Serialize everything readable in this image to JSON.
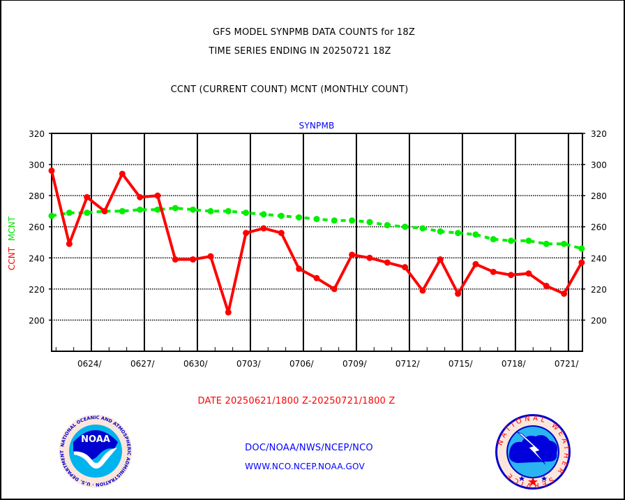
{
  "chart_data": {
    "type": "line",
    "title": "GFS MODEL SYNPMB DATA COUNTS for 18Z",
    "subtitle": "TIME SERIES ENDING IN 20250721 18Z",
    "legend_text": "CCNT (CURRENT COUNT) MCNT (MONTHLY COUNT)",
    "panel_label": "SYNPMB",
    "ylabel": {
      "ccnt": "CCNT",
      "mcnt": "MCNT"
    },
    "xlabel": "DATE 20250621/1800 Z-20250721/1800 Z",
    "ylim": [
      180,
      320
    ],
    "yticks": [
      200,
      220,
      240,
      260,
      280,
      300,
      320
    ],
    "xtick_labels": [
      "0624/",
      "0627/",
      "0630/",
      "0703/",
      "0706/",
      "0709/",
      "0712/",
      "0715/",
      "0718/",
      "0721/"
    ],
    "x": [
      "0621",
      "0622",
      "0623",
      "0624",
      "0625",
      "0626",
      "0627",
      "0628",
      "0629",
      "0630",
      "0701",
      "0702",
      "0703",
      "0704",
      "0705",
      "0706",
      "0707",
      "0708",
      "0709",
      "0710",
      "0711",
      "0712",
      "0713",
      "0714",
      "0715",
      "0716",
      "0717",
      "0718",
      "0719",
      "0720",
      "0721"
    ],
    "grid": true,
    "series": [
      {
        "name": "CCNT",
        "color": "#ff0000",
        "style": "solid",
        "values": [
          296,
          249,
          279,
          270,
          294,
          279,
          280,
          239,
          239,
          241,
          205,
          256,
          259,
          256,
          233,
          227,
          220,
          242,
          240,
          237,
          234,
          219,
          239,
          217,
          236,
          231,
          229,
          230,
          222,
          217,
          237
        ]
      },
      {
        "name": "MCNT",
        "color": "#00ee00",
        "style": "dashed",
        "values": [
          267,
          269,
          269,
          270,
          270,
          271,
          271,
          272,
          271,
          270,
          270,
          269,
          268,
          267,
          266,
          265,
          264,
          264,
          263,
          261,
          260,
          259,
          257,
          256,
          255,
          252,
          251,
          251,
          249,
          249,
          246
        ]
      }
    ]
  },
  "footer": {
    "org_line": "DOC/NOAA/NWS/NCEP/NCO",
    "url_line": "WWW.NCO.NCEP.NOAA.GOV",
    "left_logo": {
      "name": "noaa-logo",
      "center_text": "NOAA",
      "ring_text": "NATIONAL OCEANIC AND ATMOSPHERIC ADMINISTRATION · U.S. DEPARTMENT OF COMMERCE"
    },
    "right_logo": {
      "name": "nws-logo",
      "ring_text": "NATIONAL WEATHER SERVICE"
    }
  },
  "colors": {
    "ccnt": "#ff0000",
    "mcnt": "#00ee00",
    "title": "#000000",
    "blue_text": "#0000ff",
    "date_text": "#ff0000"
  }
}
